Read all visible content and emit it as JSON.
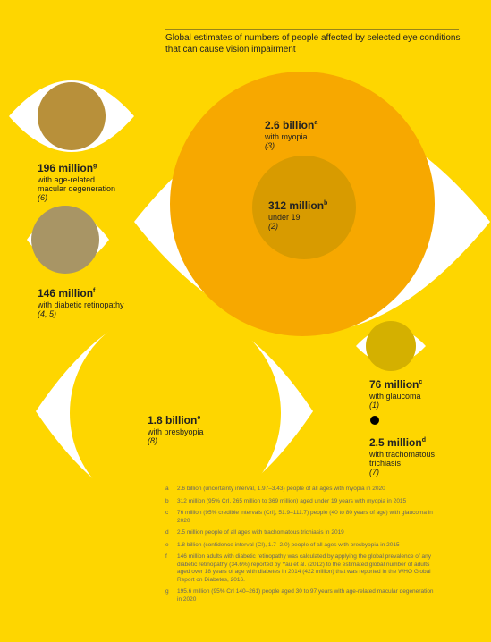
{
  "title": "Global estimates of numbers of people affected by selected eye conditions that can cause vision impairment",
  "items": [
    {
      "value": "2.6 billion",
      "note": "a",
      "lines": [
        "with myopia"
      ],
      "ref": "(3)"
    },
    {
      "value": "312 million",
      "note": "b",
      "lines": [
        "under 19"
      ],
      "ref": "(2)"
    },
    {
      "value": "196 million",
      "note": "g",
      "lines": [
        "with age-related",
        "macular degeneration"
      ],
      "ref": "(6)"
    },
    {
      "value": "146 million",
      "note": "f",
      "lines": [
        "with diabetic retinopathy"
      ],
      "ref": "(4, 5)"
    },
    {
      "value": "1.8 billion",
      "note": "e",
      "lines": [
        "with presbyopia"
      ],
      "ref": "(8)"
    },
    {
      "value": "76 million",
      "note": "c",
      "lines": [
        "with glaucoma"
      ],
      "ref": "(1)"
    },
    {
      "value": "2.5 million",
      "note": "d",
      "lines": [
        "with trachomatous",
        "trichiasis"
      ],
      "ref": "(7)"
    }
  ],
  "footnotes": [
    {
      "letter": "a",
      "text": "2.6 billion (uncertainty interval, 1.97–3.43) people of all ages with myopia in 2020"
    },
    {
      "letter": "b",
      "text": "312 million (95% CrI, 265 million to 369 million) aged under 19 years with myopia in 2015"
    },
    {
      "letter": "c",
      "text": "76 million (95% credible intervals (CrI), 51.9–111.7) people (40 to 80 years of age) with glaucoma in 2020"
    },
    {
      "letter": "d",
      "text": "2.5 million people of all ages with trachomatous trichiasis in 2019"
    },
    {
      "letter": "e",
      "text": "1.8 billion (confidence interval (CI), 1.7–2.0) people of all ages with presbyopia in 2015"
    },
    {
      "letter": "f",
      "text": "146 million adults with diabetic retinopathy was calculated by applying the global prevalence of any diabetic retinopathy (34.6%) reported by Yau et al. (2012) to the estimated global number of adults aged over 18 years of age with diabetes in 2014 (422 million) that was reported in the WHO Global Report on Diabetes, 2016."
    },
    {
      "letter": "g",
      "text": "195.6 million (95% CrI 140–261) people aged 30 to 97 years with age-related macular degeneration in 2020"
    }
  ]
}
